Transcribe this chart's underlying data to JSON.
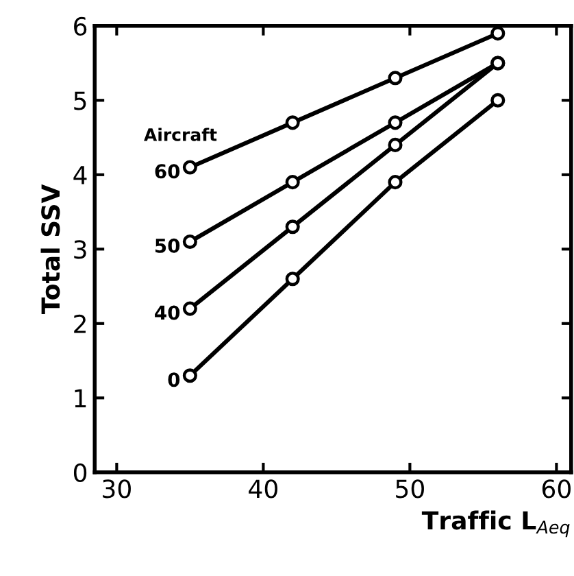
{
  "chart_data": {
    "type": "line",
    "xlabel": "Traffic L$_{Aeq}$",
    "ylabel": "Total SSV",
    "legend_title": "Aircraft",
    "x": [
      35,
      42,
      49,
      56
    ],
    "series": [
      {
        "name": "60",
        "color": "#000000",
        "values": [
          4.1,
          4.7,
          5.3,
          5.9
        ]
      },
      {
        "name": "50",
        "color": "#000000",
        "values": [
          3.1,
          3.9,
          4.7,
          5.5
        ]
      },
      {
        "name": "40",
        "color": "#000000",
        "values": [
          2.2,
          3.3,
          4.4,
          5.5
        ]
      },
      {
        "name": "0",
        "color": "#000000",
        "values": [
          1.3,
          2.6,
          3.9,
          5.0
        ]
      }
    ],
    "xlim": [
      28.5,
      61
    ],
    "ylim": [
      0,
      6
    ],
    "xticks": [
      30,
      40,
      50,
      60
    ],
    "yticks": [
      0,
      1,
      2,
      3,
      4,
      5,
      6
    ],
    "grid": false,
    "legend": false,
    "marker": "circle",
    "line_style": "solid"
  }
}
